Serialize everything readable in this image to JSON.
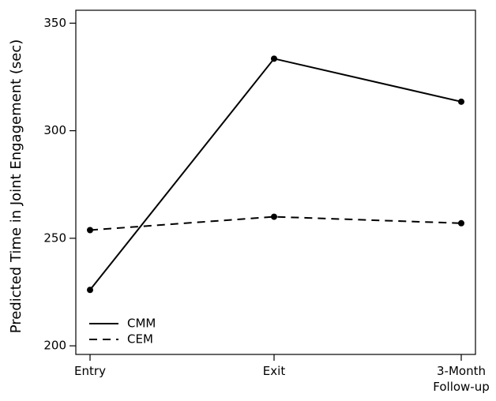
{
  "chart_data": {
    "type": "line",
    "title": "",
    "xlabel": "",
    "ylabel": "Predicted Time in Joint Engagement (sec)",
    "categories": [
      "Entry",
      "Exit",
      "3-Month\nFollow-up"
    ],
    "ylim": [
      196,
      356
    ],
    "yticks": [
      200,
      250,
      300,
      350
    ],
    "grid": false,
    "legend_position": "bottom-left",
    "series": [
      {
        "name": "CMM",
        "values": [
          226,
          333.5,
          313.5
        ],
        "style": "solid",
        "color": "#000000"
      },
      {
        "name": "CEM",
        "values": [
          253.8,
          260,
          257
        ],
        "style": "dashed",
        "color": "#000000"
      }
    ]
  }
}
